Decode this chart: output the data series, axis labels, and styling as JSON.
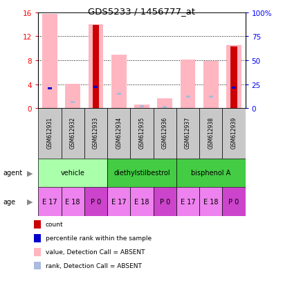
{
  "title": "GDS5233 / 1456777_at",
  "samples": [
    "GSM612931",
    "GSM612932",
    "GSM612933",
    "GSM612934",
    "GSM612935",
    "GSM612936",
    "GSM612937",
    "GSM612938",
    "GSM612939"
  ],
  "pink_bars": [
    15.7,
    4.1,
    14.0,
    8.9,
    0.6,
    1.6,
    8.1,
    7.9,
    10.5
  ],
  "red_bars": [
    0.0,
    0.0,
    13.9,
    0.0,
    0.0,
    0.0,
    0.0,
    0.0,
    10.3
  ],
  "blue_markers_val": [
    3.3,
    0.0,
    3.5,
    0.0,
    0.0,
    0.0,
    0.0,
    0.0,
    3.4
  ],
  "lightblue_markers_val": [
    3.3,
    1.0,
    0.0,
    2.4,
    0.35,
    0.2,
    1.9,
    1.9,
    0.0
  ],
  "ylim": [
    0,
    16
  ],
  "yticks": [
    0,
    4,
    8,
    12,
    16
  ],
  "y2ticks": [
    0,
    25,
    50,
    75,
    100
  ],
  "age_labels": [
    "E 17",
    "E 18",
    "P 0",
    "E 17",
    "E 18",
    "P 0",
    "E 17",
    "E 18",
    "P 0"
  ],
  "age_bg": [
    "#ee82ee",
    "#ee82ee",
    "#cc44cc",
    "#ee82ee",
    "#ee82ee",
    "#cc44cc",
    "#ee82ee",
    "#ee82ee",
    "#cc44cc"
  ],
  "agent_groups": [
    {
      "label": "vehicle",
      "start": 0,
      "end": 2,
      "color": "#aaffaa"
    },
    {
      "label": "diethylstilbestrol",
      "start": 3,
      "end": 5,
      "color": "#44cc44"
    },
    {
      "label": "bisphenol A",
      "start": 6,
      "end": 8,
      "color": "#44cc44"
    }
  ],
  "color_pink": "#ffb6c1",
  "color_red": "#cc0000",
  "color_blue": "#0000cc",
  "color_lightblue": "#aabbdd",
  "color_gray": "#c8c8c8",
  "legend_items": [
    {
      "color": "#cc0000",
      "label": "count"
    },
    {
      "color": "#0000cc",
      "label": "percentile rank within the sample"
    },
    {
      "color": "#ffb6c1",
      "label": "value, Detection Call = ABSENT"
    },
    {
      "color": "#aabbdd",
      "label": "rank, Detection Call = ABSENT"
    }
  ]
}
